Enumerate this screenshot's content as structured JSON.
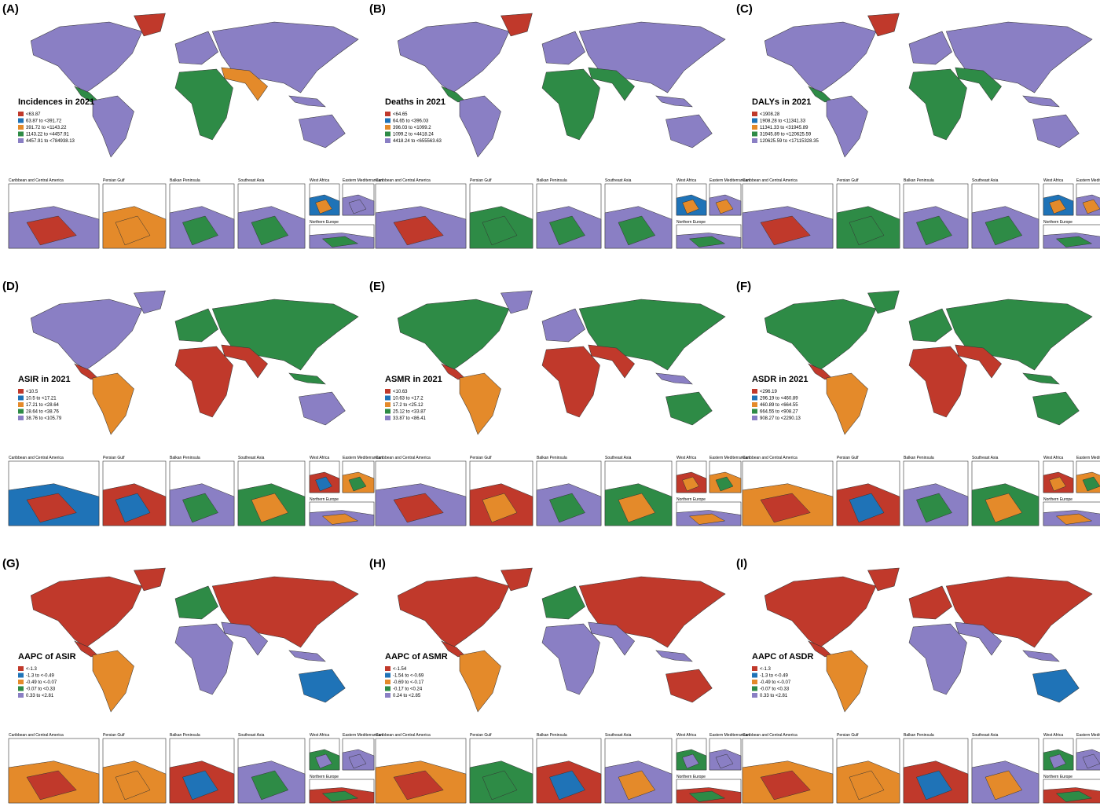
{
  "legend_colors": [
    "#c0392b",
    "#1f73b7",
    "#e48a2a",
    "#2e8b46",
    "#8a7fc4"
  ],
  "inset_titles": [
    "Caribbean and Central America",
    "Persian Gulf",
    "Balkan Peninsula",
    "Southeast Asia",
    "West Africa",
    "Eastern Mediterranean",
    "Northern Europe"
  ],
  "panels": [
    {
      "label": "(A)",
      "legend_title": "Incidences in 2021",
      "legend_items": [
        "<63.87",
        "63.87 to <391.72",
        "391.72 to <1143.22",
        "1143.22 to <4457.91",
        "4457.91 to <784938.13"
      ]
    },
    {
      "label": "(B)",
      "legend_title": "Deaths in 2021",
      "legend_items": [
        "<64.65",
        "64.65 to <396.03",
        "396.03 to <1099.2",
        "1099.2 to <4418.24",
        "4418.24 to <655563.63"
      ]
    },
    {
      "label": "(C)",
      "legend_title": "DALYs in 2021",
      "legend_items": [
        "<1908.28",
        "1908.28 to <11341.33",
        "11341.33 to <31945.89",
        "31945.89 to <120625.59",
        "120625.59 to <17115328.35"
      ]
    },
    {
      "label": "(D)",
      "legend_title": "ASIR in 2021",
      "legend_items": [
        "<10.5",
        "10.5 to <17.21",
        "17.21 to <28.64",
        "28.64 to <38.76",
        "38.76 to <105.79"
      ]
    },
    {
      "label": "(E)",
      "legend_title": "ASMR in 2021",
      "legend_items": [
        "<10.63",
        "10.63 to <17.2",
        "17.2 to <25.12",
        "25.12 to <33.87",
        "33.87 to <86.41"
      ]
    },
    {
      "label": "(F)",
      "legend_title": "ASDR in 2021",
      "legend_items": [
        "<296.19",
        "296.19 to <460.89",
        "460.89 to <664.55",
        "664.55 to <908.27",
        "908.27 to <2290.13"
      ]
    },
    {
      "label": "(G)",
      "legend_title": "AAPC of ASIR",
      "legend_items": [
        "<-1.3",
        "-1.3 to <-0.49",
        "-0.49 to <-0.07",
        "-0.07 to <0.33",
        "0.33 to <2.81"
      ]
    },
    {
      "label": "(H)",
      "legend_title": "AAPC of ASMR",
      "legend_items": [
        "<-1.54",
        "-1.54 to <-0.69",
        "-0.69 to <-0.17",
        "-0.17 to <0.24",
        "0.24 to <2.85"
      ]
    },
    {
      "label": "(I)",
      "legend_title": "AAPC of ASDR",
      "legend_items": [
        "<-1.3",
        "-1.3 to <-0.49",
        "-0.49 to <-0.07",
        "-0.07 to <0.33",
        "0.33 to <2.81"
      ]
    }
  ]
}
